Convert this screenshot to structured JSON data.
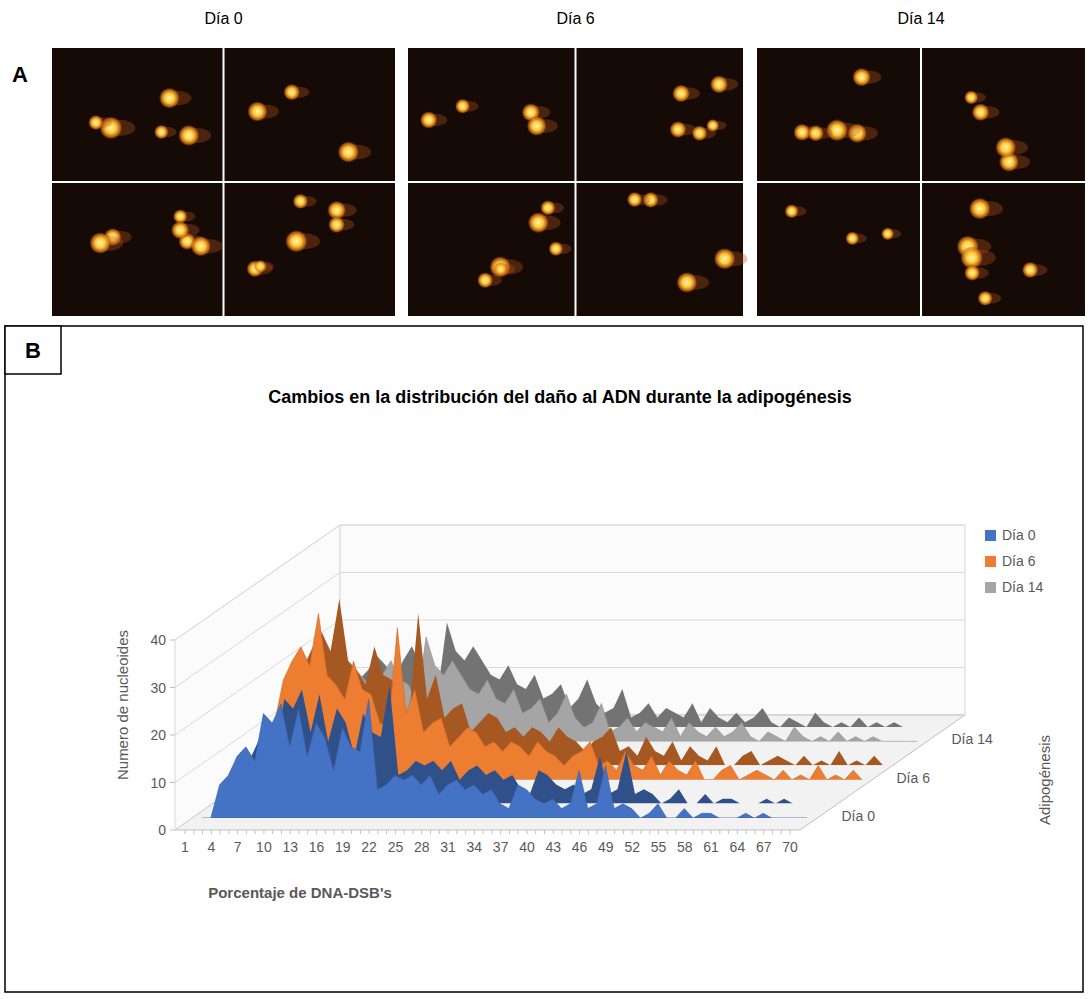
{
  "panel_a": {
    "label": "A",
    "panels": [
      "Día 0",
      "Día 6",
      "Día 14"
    ]
  },
  "panel_b": {
    "label": "B"
  },
  "chart_data": {
    "type": "area",
    "title": "Cambios en la distribución del daño al ADN durante la adipogénesis",
    "xlabel": "Porcentaje de DNA-DSB's",
    "ylabel": "Numero de nucleoides",
    "zlabel": "Adipogénesis",
    "categories": [
      1,
      null,
      null,
      4,
      null,
      null,
      7,
      null,
      null,
      10,
      null,
      null,
      13,
      null,
      null,
      16,
      null,
      null,
      19,
      null,
      null,
      22,
      null,
      null,
      25,
      null,
      null,
      28,
      null,
      null,
      31,
      null,
      null,
      34,
      null,
      null,
      37,
      null,
      null,
      40,
      null,
      null,
      43,
      null,
      null,
      46,
      null,
      null,
      49,
      null,
      null,
      52,
      null,
      null,
      55,
      null,
      null,
      58,
      null,
      null,
      61,
      null,
      null,
      64,
      null,
      null,
      67,
      null,
      null,
      70
    ],
    "series": [
      {
        "name": "Día 0",
        "color": "#4472c4",
        "values": [
          0,
          0,
          7,
          9,
          13,
          15,
          12,
          22,
          20,
          24,
          15,
          23,
          13,
          20,
          17,
          10,
          19,
          15,
          14,
          25,
          6,
          7,
          9,
          8,
          9,
          7,
          9,
          5,
          7,
          8,
          6,
          7,
          5,
          6,
          3,
          2,
          7,
          6,
          4,
          3,
          4,
          2,
          3,
          10,
          2,
          3,
          11,
          2,
          3,
          2,
          0,
          1,
          3,
          0,
          0,
          2,
          0,
          1,
          1,
          0,
          0,
          0,
          1,
          0,
          1,
          0,
          0,
          0,
          0,
          0
        ]
      },
      {
        "name": "Día 6",
        "color": "#ed7d31",
        "values": [
          0,
          5,
          12,
          21,
          25,
          28,
          24,
          35,
          22,
          20,
          17,
          25,
          19,
          18,
          12,
          11,
          32,
          14,
          19,
          10,
          12,
          13,
          7,
          9,
          11,
          10,
          7,
          8,
          6,
          8,
          7,
          5,
          8,
          6,
          5,
          3,
          5,
          6,
          8,
          3,
          4,
          2,
          6,
          3,
          2,
          5,
          1,
          4,
          2,
          1,
          4,
          0,
          0,
          2,
          3,
          0,
          1,
          2,
          1,
          0,
          2,
          0,
          1,
          0,
          3,
          0,
          1,
          0,
          2,
          0
        ]
      },
      {
        "name": "Día 14",
        "color": "#a5a5a5",
        "values": [
          0,
          3,
          7,
          10,
          12,
          15,
          13,
          10,
          14,
          17,
          13,
          12,
          8,
          22,
          16,
          14,
          17,
          14,
          11,
          10,
          13,
          9,
          8,
          11,
          6,
          7,
          9,
          4,
          6,
          10,
          5,
          3,
          4,
          8,
          2,
          3,
          5,
          2,
          4,
          3,
          2,
          5,
          1,
          4,
          2,
          1,
          3,
          1,
          2,
          4,
          1,
          0,
          2,
          1,
          0,
          3,
          1,
          0,
          1,
          0,
          2,
          0,
          1,
          0,
          1,
          0,
          0,
          0,
          0,
          0
        ]
      }
    ],
    "ylim": [
      0,
      40
    ],
    "yticks": [
      0,
      10,
      20,
      30,
      40
    ],
    "grid": true,
    "legend": "right"
  }
}
